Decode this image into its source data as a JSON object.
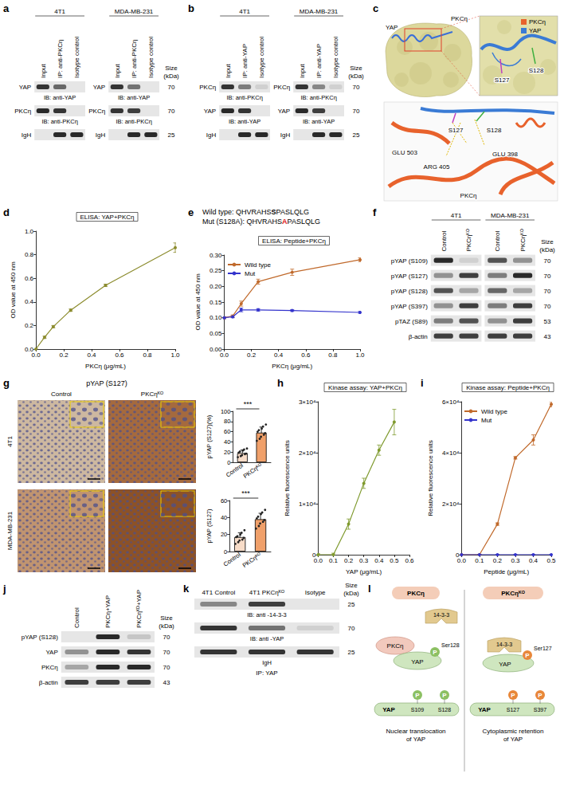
{
  "chart_data": [
    {
      "panel": "d",
      "type": "line",
      "title": "ELISA: YAP+PKCη",
      "x_label": "PKCη (μg/mL)",
      "y_label": "OD value at 450 nm",
      "x": [
        0,
        0.0625,
        0.125,
        0.25,
        0.5,
        1
      ],
      "values": [
        0,
        0.1,
        0.19,
        0.33,
        0.54,
        0.86
      ],
      "errors": [
        0.005,
        0.01,
        0.01,
        0.01,
        0.01,
        0.04
      ],
      "color": "#8c8c2e",
      "marker": "circle",
      "xlim": [
        0,
        1
      ],
      "xticks": [
        {
          "value": 0,
          "label": "0.0"
        },
        0.2,
        0.4,
        0.6,
        0.8,
        {
          "value": 1,
          "label": "1.0"
        }
      ],
      "ylim": [
        0,
        1
      ],
      "yticks": [
        {
          "value": 0,
          "label": "0.0"
        },
        0.2,
        0.4,
        0.6,
        0.8,
        {
          "value": 1,
          "label": "1.0"
        }
      ],
      "grid": false
    },
    {
      "panel": "e",
      "type": "line",
      "title": "ELISA: Peptide+PKCη",
      "x_label": "PKCη (μg/mL)",
      "y_label": "OD value at 450 nm",
      "annotations": [
        "Wild type: QHVRAHSSPASLQLG",
        "Mut (S128A): QHVRAHSAPASLQLG"
      ],
      "x": [
        0,
        0.0625,
        0.125,
        0.25,
        0.5,
        1
      ],
      "marker": "circle",
      "series": [
        {
          "name": "Wild type",
          "color": "#c0692b",
          "values": [
            0.1,
            0.105,
            0.145,
            0.215,
            0.245,
            0.285
          ],
          "errors": [
            0.003,
            0.004,
            0.008,
            0.008,
            0.01,
            0.006
          ]
        },
        {
          "name": "Mut",
          "color": "#3333cc",
          "values": [
            0.1,
            0.103,
            0.125,
            0.125,
            0.123,
            0.117
          ],
          "errors": [
            0.003,
            0.003,
            0.006,
            0.004,
            0.003,
            0.003
          ]
        }
      ],
      "xlim": [
        0,
        1
      ],
      "xticks": [
        {
          "value": 0,
          "label": "0.0"
        },
        0.2,
        0.4,
        0.6,
        0.8,
        {
          "value": 1,
          "label": "1.0"
        }
      ],
      "ylim": [
        0,
        0.3
      ],
      "yticks": [
        {
          "value": 0,
          "label": "0.00"
        },
        0.05,
        {
          "value": 0.1,
          "label": "0.10"
        },
        0.15,
        {
          "value": 0.2,
          "label": "0.20"
        },
        0.25,
        {
          "value": 0.3,
          "label": "0.30"
        }
      ],
      "legend": "upper left",
      "grid": false
    },
    {
      "panel": "h",
      "type": "line",
      "title": "Kinase assay: YAP+PKCη",
      "x_label": "YAP (μg/mL)",
      "y_label": "Relative fluorescence units",
      "x": [
        0,
        0.1,
        0.2,
        0.3,
        0.4,
        0.5
      ],
      "values": [
        0,
        0,
        6000,
        14000,
        20500,
        26000
      ],
      "errors": [
        200,
        300,
        1000,
        1000,
        1000,
        2500
      ],
      "color": "#7f9a2e",
      "marker": "circle",
      "xlim": [
        0,
        0.6
      ],
      "xticks": [
        {
          "value": 0,
          "label": "0.0"
        },
        0.1,
        0.2,
        0.3,
        0.4,
        0.5,
        0.6
      ],
      "ylim": [
        0,
        30000
      ],
      "yticks": [
        0,
        {
          "value": 10000,
          "label": "1×10⁴"
        },
        {
          "value": 20000,
          "label": "2×10⁴"
        },
        {
          "value": 30000,
          "label": "3×10⁴"
        }
      ],
      "grid": false
    },
    {
      "panel": "i",
      "type": "line",
      "title": "Kinase assay: Peptide+PKCη",
      "x_label": "Peptide (μg/mL)",
      "y_label": "Relative fluorescence units",
      "x": [
        0,
        0.1,
        0.2,
        0.3,
        0.4,
        0.5
      ],
      "marker": "circle",
      "series": [
        {
          "name": "Wild type",
          "color": "#c0692b",
          "values": [
            0,
            0,
            12000,
            38000,
            45000,
            59000
          ],
          "errors": [
            0,
            0,
            500,
            500,
            2000,
            1000
          ]
        },
        {
          "name": "Mut",
          "color": "#3333cc",
          "values": [
            0,
            0,
            0,
            0,
            0,
            0
          ],
          "errors": [
            0,
            0,
            0,
            0,
            0,
            0
          ]
        }
      ],
      "xlim": [
        0,
        0.5
      ],
      "xticks": [
        {
          "value": 0,
          "label": "0.0"
        },
        0.1,
        0.2,
        0.3,
        0.4,
        0.5
      ],
      "ylim": [
        0,
        60000
      ],
      "yticks": [
        0,
        {
          "value": 20000,
          "label": "2×10⁴"
        },
        {
          "value": 40000,
          "label": "4×10⁴"
        },
        {
          "value": 60000,
          "label": "6×10⁴"
        }
      ],
      "legend": "upper left",
      "grid": false
    },
    {
      "panel": "g",
      "type": "bar",
      "y_label": "pYAP (S127)(%)",
      "categories": [
        "Control",
        "PKCηᴷᴼ"
      ],
      "values": [
        18,
        58
      ],
      "errors": [
        6,
        11
      ],
      "points": [
        [
          10,
          12,
          14,
          16,
          17,
          19,
          21,
          23,
          25,
          27
        ],
        [
          42,
          46,
          50,
          54,
          57,
          60,
          63,
          66,
          70,
          74
        ]
      ],
      "colors": [
        "#f7dcc8",
        "#f0a06a"
      ],
      "ylim": [
        0,
        100
      ],
      "yticks": [
        0,
        20,
        40,
        60,
        80,
        100
      ],
      "significance": "***",
      "grid": false
    },
    {
      "panel": "g",
      "type": "bar",
      "y_label": "pYAP (S127)",
      "categories": [
        "Control",
        "PKCηᴷᴼ"
      ],
      "values": [
        17,
        38
      ],
      "errors": [
        5,
        7
      ],
      "points": [
        [
          9,
          11,
          13,
          14,
          16,
          17,
          18,
          20,
          22,
          25
        ],
        [
          27,
          30,
          33,
          35,
          37,
          39,
          41,
          44,
          46,
          49
        ]
      ],
      "colors": [
        "#f7dcc8",
        "#f0a06a"
      ],
      "ylim": [
        0,
        60
      ],
      "yticks": [
        0,
        20,
        40,
        60
      ],
      "significance": "***",
      "grid": false
    }
  ],
  "panels": {
    "a": {
      "letter": "a",
      "size_title": "Size (kDa)",
      "sizes": [
        70,
        70,
        25
      ],
      "groups": [
        {
          "title": "4T1",
          "lanes": [
            "Input",
            "IP: anti-PKCη",
            "Isotype control"
          ],
          "row_labels": [
            "YAP",
            "PKCη",
            "IgH"
          ],
          "captions": [
            "IB: anti-YAP",
            "IB: anti-PKCη",
            null
          ],
          "bands": [
            [
              0.85,
              0.6,
              0
            ],
            [
              0.9,
              0.85,
              0
            ],
            [
              0,
              0.9,
              0.9
            ]
          ]
        },
        {
          "title": "MDA-MB-231",
          "lanes": [
            "Input",
            "IP: anti-PKCη",
            "Isotype control"
          ],
          "row_labels": [
            "YAP",
            "PKCη",
            "IgH"
          ],
          "captions": [
            "IB: anti-YAP",
            "IB: anti-PKCη",
            null
          ],
          "bands": [
            [
              0.85,
              0.55,
              0
            ],
            [
              0.85,
              0.8,
              0
            ],
            [
              0,
              0.9,
              0.9
            ]
          ]
        }
      ]
    },
    "b": {
      "letter": "b",
      "size_title": "Size (kDa)",
      "sizes": [
        70,
        70,
        25
      ],
      "groups": [
        {
          "title": "4T1",
          "lanes": [
            "Input",
            "IP: anti-YAP",
            "Isotype control"
          ],
          "row_labels": [
            "PKCη",
            "YAP",
            "IgH"
          ],
          "captions": [
            "IB: anti-PKCη",
            "IB: anti-YAP",
            null
          ],
          "bands": [
            [
              0.85,
              0.5,
              0.1
            ],
            [
              0.9,
              0.85,
              0
            ],
            [
              0,
              0.9,
              0.9
            ]
          ]
        },
        {
          "title": "MDA-MB-231",
          "lanes": [
            "Input",
            "IP: anti-YAP",
            "Isotype control"
          ],
          "row_labels": [
            "PKCη",
            "YAP",
            "IgH"
          ],
          "captions": [
            "IB: anti-PKCη",
            "IB: anti-YAP",
            null
          ],
          "bands": [
            [
              0.85,
              0.45,
              0.1
            ],
            [
              0.9,
              0.8,
              0
            ],
            [
              0,
              0.9,
              0.9
            ]
          ]
        }
      ]
    },
    "c": {
      "letter": "c",
      "surface_labels": [
        "YAP",
        "PKCη"
      ],
      "key": [
        {
          "name": "PKCη",
          "color": "#e8622c"
        },
        {
          "name": "YAP",
          "color": "#3a7bd5"
        }
      ],
      "zoom_labels": [
        "S127",
        "S128"
      ],
      "detail_labels": [
        "GLU 503",
        "S127",
        "S128",
        "ARG 405",
        "GLU 398",
        "PKCη"
      ]
    },
    "f": {
      "letter": "f",
      "size_title": "Size (kDa)",
      "sizes": [
        70,
        70,
        70,
        70,
        53,
        43
      ],
      "groups": [
        {
          "title": "4T1",
          "lanes": [
            "Control",
            "PKCηᴷᴼ"
          ],
          "row_labels": [
            "pYAP (S109)",
            "pYAP (S127)",
            "pYAP (S128)",
            "pYAP (S397)",
            "pTAZ (S89)",
            "β-actin"
          ],
          "bands": [
            [
              0.9,
              0.1
            ],
            [
              0.4,
              0.8
            ],
            [
              0.7,
              0.3
            ],
            [
              0.4,
              0.8
            ],
            [
              0.5,
              0.7
            ],
            [
              0.8,
              0.8
            ]
          ]
        },
        {
          "title": "MDA-MB-231",
          "lanes": [
            "Control",
            "PKCηᴷᴼ"
          ],
          "bands": [
            [
              0.7,
              0.4
            ],
            [
              0.5,
              0.9
            ],
            [
              0.6,
              0.3
            ],
            [
              0.5,
              0.8
            ],
            [
              0.4,
              0.8
            ],
            [
              0.8,
              0.8
            ]
          ]
        }
      ]
    },
    "g": {
      "letter": "g",
      "title": "pYAP (S127)",
      "columns": [
        "Control",
        "PKCηᴷᴼ"
      ],
      "rows": [
        "4T1",
        "MDA-MB-231"
      ]
    },
    "j": {
      "letter": "j",
      "size_title": "Size (kDa)",
      "sizes": [
        70,
        70,
        70,
        43
      ],
      "groups": [
        {
          "lanes": [
            "Control",
            "PKCη+YAP",
            "PKCηᴷᴰ+YAP"
          ],
          "row_labels": [
            "pYAP (S128)",
            "YAP",
            "PKCη",
            "β-actin"
          ],
          "bands": [
            [
              0,
              0.9,
              0.15
            ],
            [
              0.4,
              0.9,
              0.85
            ],
            [
              0.3,
              0.9,
              0.9
            ],
            [
              0.8,
              0.8,
              0.8
            ]
          ]
        }
      ]
    },
    "k": {
      "letter": "k",
      "size_title": "Size (kDa)",
      "sizes": [
        25,
        70,
        25
      ],
      "footer": "IP: YAP",
      "groups": [
        {
          "lanes": [
            "4T1 Control",
            "4T1 PKCηᴷᴼ",
            "Isotype"
          ],
          "captions": [
            "IB: anti -14-3-3",
            "IB: anti -YAP",
            "IgH"
          ],
          "bands": [
            [
              0.45,
              0.8,
              0
            ],
            [
              0.85,
              0.55,
              0.1
            ],
            [
              0.85,
              0.85,
              0.85
            ]
          ]
        }
      ]
    },
    "l": {
      "letter": "l",
      "phospho": "P",
      "left": {
        "header": "PKCη",
        "adaptor": "14-3-3",
        "kinase": "PKCη",
        "substrate": "YAP",
        "site": "Ser128",
        "bar": "YAP",
        "bar_sites": [
          "S109",
          "S128"
        ],
        "caption": "Nuclear translocation of YAP"
      },
      "right": {
        "header": "PKCηᴷᴼ",
        "adaptor": "14-3-3",
        "substrate": "YAP",
        "site": "Ser127",
        "bar": "YAP",
        "bar_sites": [
          "S127",
          "S397"
        ],
        "caption": "Cytoplasmic retention of YAP"
      }
    }
  }
}
